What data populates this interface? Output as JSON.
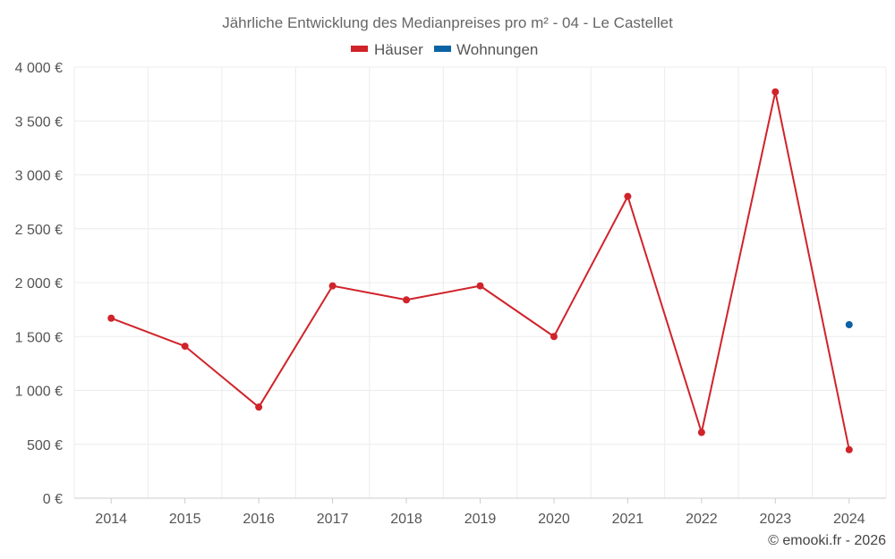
{
  "chart_data": {
    "type": "line",
    "title": "Jährliche Entwicklung des Medianpreises pro m² - 04 - Le Castellet",
    "categories": [
      "2014",
      "2015",
      "2016",
      "2017",
      "2018",
      "2019",
      "2020",
      "2021",
      "2022",
      "2023",
      "2024"
    ],
    "series": [
      {
        "name": "Häuser",
        "color": "#d0232a",
        "values": [
          1670,
          1410,
          845,
          1970,
          1840,
          1970,
          1500,
          2800,
          610,
          3770,
          450
        ]
      },
      {
        "name": "Wohnungen",
        "color": "#0a63a3",
        "values": [
          null,
          null,
          null,
          null,
          null,
          null,
          null,
          null,
          null,
          null,
          1610
        ]
      }
    ],
    "ylim": [
      0,
      4000
    ],
    "yticks": [
      0,
      500,
      1000,
      1500,
      2000,
      2500,
      3000,
      3500,
      4000
    ],
    "ytick_labels": [
      "0 €",
      "500 €",
      "1 000 €",
      "1 500 €",
      "2 000 €",
      "2 500 €",
      "3 000 €",
      "3 500 €",
      "4 000 €"
    ],
    "xlabel": "",
    "ylabel": "",
    "legend": "top-center",
    "grid": true
  },
  "credit": "© emooki.fr - 2026"
}
